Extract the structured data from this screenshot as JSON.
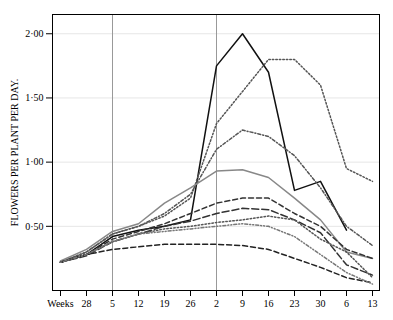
{
  "chart_data": {
    "type": "line",
    "ylabel": "FLOWERS PER PLANT PER DAY.",
    "categories": [
      "Weeks",
      "28",
      "5",
      "12",
      "19",
      "26",
      "2",
      "9",
      "16",
      "23",
      "30",
      "6",
      "13"
    ],
    "ylim": [
      0,
      2.15
    ],
    "yticks": [
      {
        "value": 0.5,
        "label": "0·50"
      },
      {
        "value": 1.0,
        "label": "1·00"
      },
      {
        "value": 1.5,
        "label": "1·50"
      },
      {
        "value": 2.0,
        "label": "2·00"
      }
    ],
    "grid": true,
    "x_lines": [
      "5",
      "2"
    ],
    "series": [
      {
        "color": "#111111",
        "line_style": "solid",
        "values": [
          0.22,
          0.28,
          0.42,
          0.47,
          0.5,
          0.55,
          1.75,
          2.0,
          1.7,
          0.78,
          0.85,
          0.47,
          null
        ]
      },
      {
        "color": "#555555",
        "line_style": "dotted",
        "values": [
          0.22,
          0.3,
          0.44,
          0.5,
          0.58,
          0.72,
          1.3,
          1.55,
          1.8,
          1.8,
          1.6,
          0.95,
          0.85
        ]
      },
      {
        "color": "#555555",
        "line_style": "dashdot",
        "values": [
          0.22,
          0.3,
          0.44,
          0.5,
          0.6,
          0.75,
          1.1,
          1.25,
          1.2,
          1.05,
          0.8,
          0.5,
          0.35
        ]
      },
      {
        "color": "#888888",
        "line_style": "solid",
        "values": [
          0.23,
          0.32,
          0.46,
          0.52,
          0.68,
          0.8,
          0.93,
          0.94,
          0.88,
          0.72,
          0.55,
          0.3,
          0.25
        ]
      },
      {
        "color": "#333333",
        "line_style": "dashed",
        "values": [
          0.22,
          0.28,
          0.4,
          0.46,
          0.52,
          0.6,
          0.68,
          0.72,
          0.72,
          0.6,
          0.5,
          0.32,
          0.25
        ]
      },
      {
        "color": "#333333",
        "line_style": "longdash",
        "values": [
          0.22,
          0.27,
          0.38,
          0.44,
          0.5,
          0.54,
          0.6,
          0.64,
          0.63,
          0.55,
          0.45,
          0.2,
          0.12
        ]
      },
      {
        "color": "#555555",
        "line_style": "dotted",
        "values": [
          0.22,
          0.28,
          0.38,
          0.44,
          0.48,
          0.5,
          0.53,
          0.55,
          0.58,
          0.55,
          0.4,
          0.3,
          0.1
        ]
      },
      {
        "color": "#222222",
        "line_style": "dashed",
        "values": [
          0.22,
          0.28,
          0.32,
          0.34,
          0.36,
          0.36,
          0.36,
          0.35,
          0.32,
          0.25,
          0.18,
          0.1,
          0.06
        ]
      },
      {
        "color": "#777777",
        "line_style": "dotdashdot",
        "values": [
          0.22,
          0.28,
          0.38,
          0.44,
          0.46,
          0.48,
          0.5,
          0.52,
          0.5,
          0.42,
          0.28,
          0.14,
          0.05
        ]
      }
    ]
  }
}
